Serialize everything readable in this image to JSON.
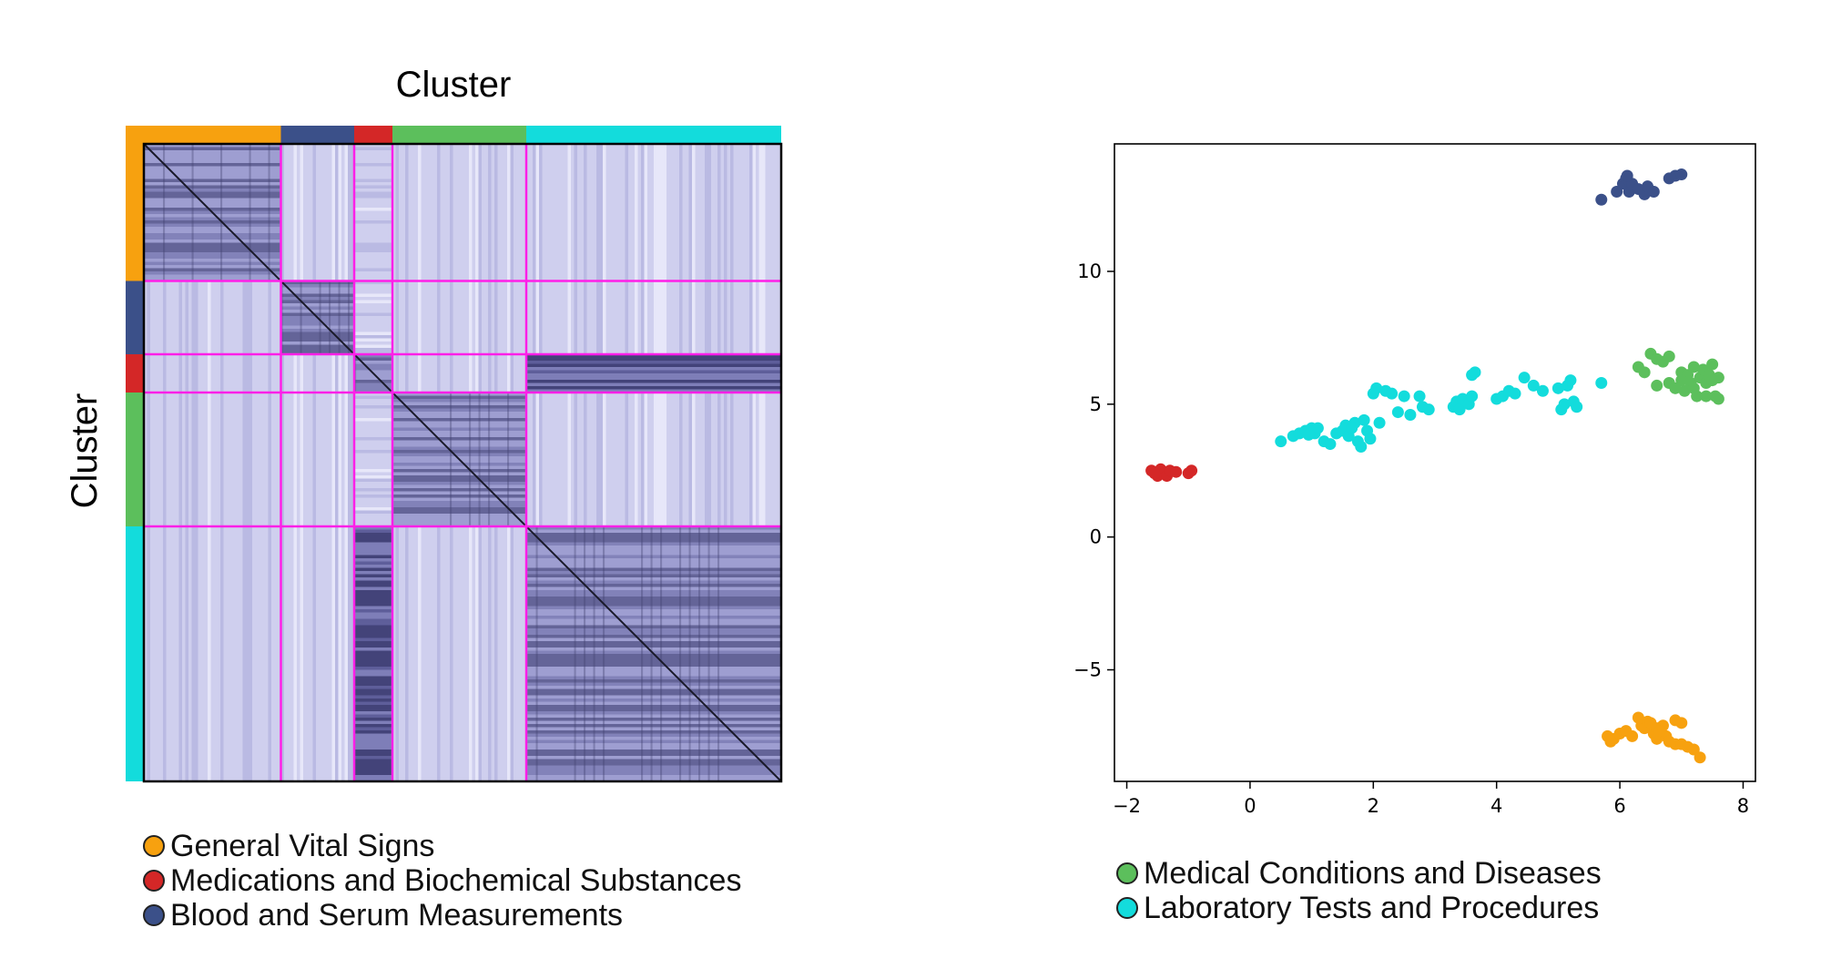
{
  "heatmap": {
    "title": "Cluster",
    "ylabel": "Cluster",
    "size": 200,
    "clusters": [
      {
        "name": "General Vital Signs",
        "color": "#f7a10f",
        "count": 43
      },
      {
        "name": "Blood and Serum Measurements",
        "color": "#3b5089",
        "count": 23
      },
      {
        "name": "Medications and Biochemical Substances",
        "color": "#d42727",
        "count": 12
      },
      {
        "name": "Medical Conditions and Diseases",
        "color": "#5cbf5c",
        "count": 42
      },
      {
        "name": "Laboratory Tests and Procedures",
        "color": "#13dcdc",
        "count": 80
      }
    ],
    "separator_color": "#ff1fe8"
  },
  "chart_data": {
    "type": "scatter",
    "xlim": [
      -2.2,
      8.2
    ],
    "ylim": [
      -9.2,
      14.8
    ],
    "xticks": [
      -2,
      0,
      2,
      4,
      6,
      8
    ],
    "yticks": [
      -5,
      0,
      5,
      10
    ],
    "xtick_labels": [
      "−2",
      "0",
      "2",
      "4",
      "6",
      "8"
    ],
    "ytick_labels": [
      "−5",
      "0",
      "5",
      "10"
    ],
    "grid": false,
    "series": [
      {
        "name": "General Vital Signs",
        "color": "#f7a10f",
        "points": [
          [
            5.8,
            -7.5
          ],
          [
            5.9,
            -7.6
          ],
          [
            6.0,
            -7.4
          ],
          [
            6.1,
            -7.3
          ],
          [
            6.2,
            -7.5
          ],
          [
            6.3,
            -6.8
          ],
          [
            6.35,
            -7.1
          ],
          [
            6.4,
            -7.2
          ],
          [
            6.45,
            -6.95
          ],
          [
            6.5,
            -7.0
          ],
          [
            6.55,
            -7.4
          ],
          [
            6.6,
            -7.2
          ],
          [
            6.6,
            -7.6
          ],
          [
            6.7,
            -7.1
          ],
          [
            6.75,
            -7.5
          ],
          [
            6.8,
            -7.7
          ],
          [
            6.9,
            -7.8
          ],
          [
            6.9,
            -6.9
          ],
          [
            7.0,
            -7.0
          ],
          [
            7.0,
            -7.8
          ],
          [
            7.1,
            -7.9
          ],
          [
            7.2,
            -8.0
          ],
          [
            7.3,
            -8.3
          ],
          [
            5.85,
            -7.7
          ],
          [
            6.65,
            -7.3
          ]
        ]
      },
      {
        "name": "Blood and Serum Measurements",
        "color": "#3b5089",
        "points": [
          [
            5.7,
            12.7
          ],
          [
            5.95,
            13.0
          ],
          [
            6.05,
            13.3
          ],
          [
            6.1,
            13.5
          ],
          [
            6.15,
            13.0
          ],
          [
            6.2,
            13.3
          ],
          [
            6.3,
            13.1
          ],
          [
            6.4,
            12.9
          ],
          [
            6.45,
            13.2
          ],
          [
            6.55,
            13.0
          ],
          [
            6.8,
            13.5
          ],
          [
            6.9,
            13.6
          ],
          [
            7.0,
            13.65
          ],
          [
            6.12,
            13.6
          ]
        ]
      },
      {
        "name": "Medications and Biochemical Substances",
        "color": "#d42727",
        "points": [
          [
            -1.6,
            2.5
          ],
          [
            -1.5,
            2.3
          ],
          [
            -1.45,
            2.55
          ],
          [
            -1.4,
            2.4
          ],
          [
            -1.35,
            2.3
          ],
          [
            -1.3,
            2.5
          ],
          [
            -1.2,
            2.45
          ],
          [
            -1.0,
            2.4
          ],
          [
            -0.95,
            2.5
          ],
          [
            -1.55,
            2.4
          ]
        ]
      },
      {
        "name": "Medical Conditions and Diseases",
        "color": "#5cbf5c",
        "points": [
          [
            6.3,
            6.4
          ],
          [
            6.4,
            6.2
          ],
          [
            6.5,
            6.9
          ],
          [
            6.6,
            6.7
          ],
          [
            6.7,
            6.6
          ],
          [
            6.8,
            6.8
          ],
          [
            6.6,
            5.7
          ],
          [
            6.8,
            5.8
          ],
          [
            6.9,
            5.6
          ],
          [
            7.0,
            6.2
          ],
          [
            7.05,
            5.5
          ],
          [
            7.1,
            6.1
          ],
          [
            7.15,
            5.8
          ],
          [
            7.2,
            6.4
          ],
          [
            7.25,
            5.3
          ],
          [
            7.3,
            6.0
          ],
          [
            7.35,
            6.3
          ],
          [
            7.4,
            5.8
          ],
          [
            7.45,
            6.1
          ],
          [
            7.5,
            6.5
          ],
          [
            7.5,
            5.9
          ],
          [
            7.55,
            5.3
          ],
          [
            7.6,
            5.2
          ],
          [
            7.6,
            6.0
          ],
          [
            7.4,
            5.3
          ],
          [
            7.2,
            5.6
          ],
          [
            7.0,
            5.9
          ]
        ]
      },
      {
        "name": "Laboratory Tests and Procedures",
        "color": "#13dcdc",
        "points": [
          [
            0.5,
            3.6
          ],
          [
            0.7,
            3.8
          ],
          [
            0.8,
            3.9
          ],
          [
            0.9,
            4.0
          ],
          [
            1.0,
            4.1
          ],
          [
            1.05,
            3.9
          ],
          [
            1.1,
            4.1
          ],
          [
            1.2,
            3.6
          ],
          [
            1.3,
            3.5
          ],
          [
            1.4,
            3.9
          ],
          [
            1.5,
            4.0
          ],
          [
            1.55,
            4.2
          ],
          [
            1.6,
            3.8
          ],
          [
            1.7,
            4.3
          ],
          [
            1.75,
            3.6
          ],
          [
            1.8,
            3.4
          ],
          [
            1.85,
            4.4
          ],
          [
            1.9,
            4.0
          ],
          [
            1.95,
            3.7
          ],
          [
            2.0,
            5.4
          ],
          [
            2.05,
            5.6
          ],
          [
            2.1,
            4.3
          ],
          [
            2.2,
            5.5
          ],
          [
            2.3,
            5.4
          ],
          [
            2.5,
            5.3
          ],
          [
            2.4,
            4.7
          ],
          [
            2.6,
            4.6
          ],
          [
            2.75,
            5.3
          ],
          [
            2.8,
            4.9
          ],
          [
            2.9,
            4.8
          ],
          [
            3.3,
            4.9
          ],
          [
            3.35,
            5.1
          ],
          [
            3.4,
            4.8
          ],
          [
            3.45,
            5.2
          ],
          [
            3.55,
            5.0
          ],
          [
            3.6,
            6.1
          ],
          [
            3.65,
            6.2
          ],
          [
            3.6,
            5.3
          ],
          [
            4.0,
            5.2
          ],
          [
            4.1,
            5.3
          ],
          [
            4.2,
            5.5
          ],
          [
            4.3,
            5.4
          ],
          [
            4.45,
            6.0
          ],
          [
            4.6,
            5.7
          ],
          [
            4.75,
            5.5
          ],
          [
            5.0,
            5.6
          ],
          [
            5.05,
            4.8
          ],
          [
            5.1,
            5.0
          ],
          [
            5.15,
            5.7
          ],
          [
            5.2,
            5.9
          ],
          [
            5.25,
            5.1
          ],
          [
            5.3,
            4.9
          ],
          [
            5.7,
            5.8
          ],
          [
            1.65,
            4.1
          ],
          [
            0.95,
            3.85
          ]
        ]
      }
    ]
  },
  "legends": {
    "left": [
      {
        "label": "General Vital Signs",
        "color": "#f7a10f"
      },
      {
        "label": "Medications and Biochemical Substances",
        "color": "#d42727"
      },
      {
        "label": "Blood and Serum Measurements",
        "color": "#3b5089"
      }
    ],
    "right": [
      {
        "label": "Medical Conditions and Diseases",
        "color": "#5cbf5c"
      },
      {
        "label": "Laboratory Tests and Procedures",
        "color": "#13dcdc"
      }
    ]
  }
}
